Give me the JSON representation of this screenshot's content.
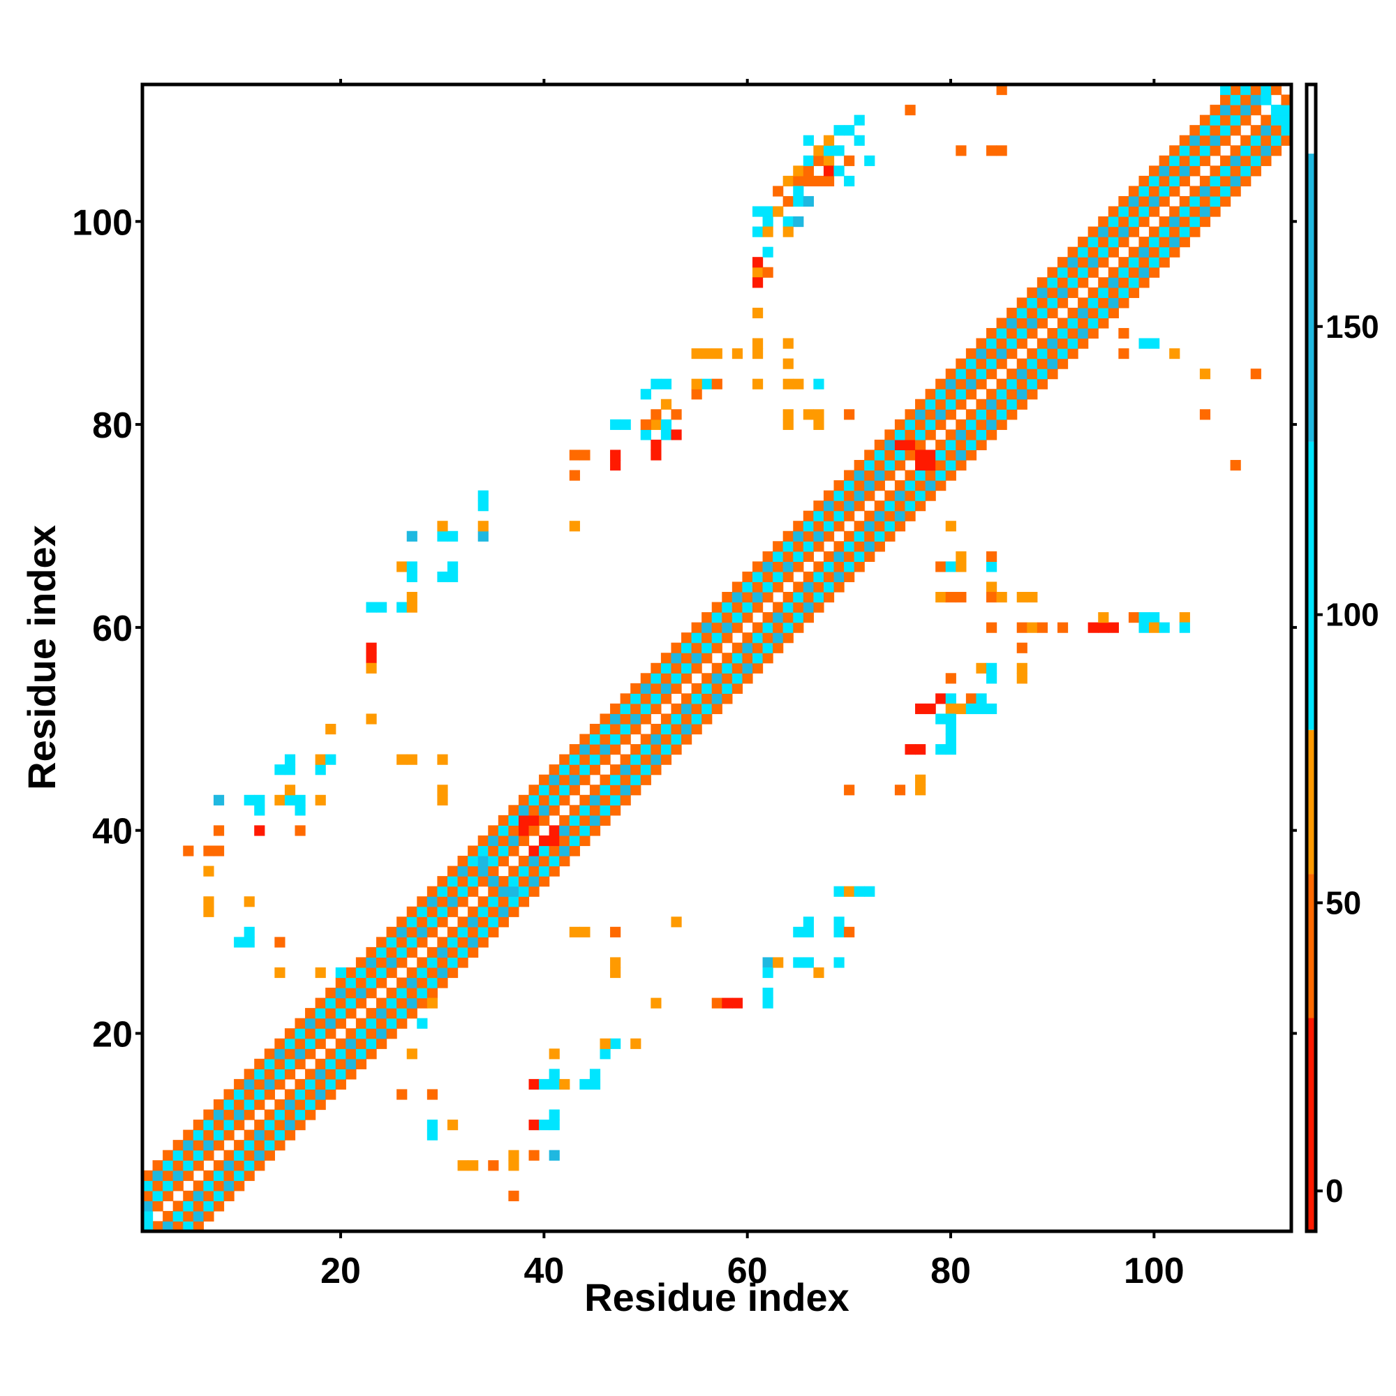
{
  "chart_data": {
    "type": "heatmap",
    "title": "",
    "xlabel": "Residue index",
    "ylabel": "Residue index",
    "xlim": [
      0.5,
      113.5
    ],
    "ylim": [
      0.5,
      113.5
    ],
    "x_ticks": [
      20,
      40,
      60,
      80,
      100
    ],
    "y_ticks": [
      20,
      40,
      60,
      80,
      100
    ],
    "x_tick_labels": [
      "20",
      "40",
      "60",
      "80",
      "100"
    ],
    "y_tick_labels": [
      "20",
      "40",
      "60",
      "80",
      "100"
    ],
    "grid": false,
    "colorbar": {
      "ticks": [
        0,
        50,
        100,
        150
      ],
      "tick_labels": [
        "0",
        "50",
        "100",
        "150"
      ],
      "range": [
        -7,
        192
      ],
      "bands": [
        {
          "from": -7,
          "to": 30,
          "color": "#ff1a00"
        },
        {
          "from": 30,
          "to": 55,
          "color": "#ff6a00"
        },
        {
          "from": 55,
          "to": 80,
          "color": "#ff9a00"
        },
        {
          "from": 80,
          "to": 130,
          "color": "#00e5ff"
        },
        {
          "from": 130,
          "to": 180,
          "color": "#1fb8e0"
        },
        {
          "from": 180,
          "to": 192,
          "color": "#ffffff"
        }
      ]
    },
    "colors": {
      "red": "#ff1a00",
      "orange": "#ff6a00",
      "amber": "#ff9a00",
      "cyan": "#00e5ff",
      "blue": "#1fb8e0",
      "steel": "#4a90c8"
    },
    "diagonal_pattern": [
      {
        "offset": 1,
        "value": 40
      },
      {
        "offset": 2,
        "value": 105
      },
      {
        "offset": 3,
        "value": 40
      },
      {
        "offset": 4,
        "value": 105
      },
      {
        "offset": 5,
        "value": 40
      }
    ],
    "cells": [
      [
        1,
        1,
        105
      ],
      [
        1,
        2,
        105
      ],
      [
        2,
        3,
        40
      ],
      [
        3,
        4,
        40
      ],
      [
        2,
        1,
        40
      ],
      [
        3,
        2,
        40
      ],
      [
        38,
        41,
        5
      ],
      [
        39,
        41,
        5
      ],
      [
        38,
        40,
        5
      ],
      [
        40,
        39,
        5
      ],
      [
        41,
        39,
        5
      ],
      [
        41,
        40,
        5
      ],
      [
        39,
        38,
        5
      ],
      [
        75,
        78,
        5
      ],
      [
        76,
        78,
        5
      ],
      [
        77,
        77,
        5
      ],
      [
        78,
        77,
        5
      ],
      [
        78,
        76,
        5
      ],
      [
        77,
        76,
        5
      ],
      [
        72,
        74,
        150
      ],
      [
        71,
        73,
        150
      ],
      [
        73,
        71,
        150
      ],
      [
        34,
        37,
        150
      ],
      [
        35,
        35,
        150
      ],
      [
        37,
        34,
        150
      ],
      [
        107,
        113,
        105
      ],
      [
        108,
        112,
        105
      ],
      [
        109,
        111,
        150
      ],
      [
        110,
        112,
        150
      ],
      [
        111,
        112,
        105
      ],
      [
        112,
        111,
        105
      ],
      [
        113,
        110,
        105
      ],
      [
        5,
        38,
        40
      ],
      [
        7,
        38,
        40
      ],
      [
        8,
        38,
        40
      ],
      [
        7,
        36,
        60
      ],
      [
        7,
        33,
        60
      ],
      [
        7,
        32,
        60
      ],
      [
        8,
        40,
        40
      ],
      [
        12,
        40,
        5
      ],
      [
        8,
        43,
        150
      ],
      [
        11,
        43,
        105
      ],
      [
        12,
        43,
        105
      ],
      [
        12,
        42,
        105
      ],
      [
        16,
        40,
        40
      ],
      [
        14,
        43,
        60
      ],
      [
        15,
        43,
        105
      ],
      [
        16,
        43,
        105
      ],
      [
        18,
        43,
        60
      ],
      [
        15,
        44,
        60
      ],
      [
        14,
        46,
        105
      ],
      [
        15,
        46,
        105
      ],
      [
        15,
        47,
        105
      ],
      [
        18,
        46,
        105
      ],
      [
        18,
        47,
        60
      ],
      [
        19,
        47,
        105
      ],
      [
        16,
        42,
        105
      ],
      [
        19,
        50,
        60
      ],
      [
        23,
        51,
        60
      ],
      [
        26,
        47,
        60
      ],
      [
        27,
        47,
        60
      ],
      [
        30,
        47,
        60
      ],
      [
        30,
        44,
        60
      ],
      [
        30,
        43,
        60
      ],
      [
        23,
        58,
        5
      ],
      [
        23,
        57,
        5
      ],
      [
        23,
        56,
        60
      ],
      [
        23,
        62,
        105
      ],
      [
        24,
        62,
        105
      ],
      [
        26,
        62,
        105
      ],
      [
        27,
        62,
        60
      ],
      [
        27,
        63,
        60
      ],
      [
        26,
        66,
        60
      ],
      [
        27,
        66,
        105
      ],
      [
        27,
        65,
        105
      ],
      [
        27,
        69,
        150
      ],
      [
        30,
        69,
        105
      ],
      [
        31,
        69,
        105
      ],
      [
        30,
        70,
        60
      ],
      [
        30,
        65,
        105
      ],
      [
        31,
        66,
        105
      ],
      [
        31,
        65,
        105
      ],
      [
        34,
        69,
        150
      ],
      [
        34,
        70,
        60
      ],
      [
        34,
        72,
        105
      ],
      [
        34,
        73,
        105
      ],
      [
        11,
        33,
        60
      ],
      [
        11,
        30,
        105
      ],
      [
        10,
        29,
        105
      ],
      [
        11,
        29,
        105
      ],
      [
        14,
        29,
        40
      ],
      [
        14,
        26,
        60
      ],
      [
        18,
        26,
        60
      ],
      [
        20,
        26,
        105
      ],
      [
        29,
        23,
        60
      ],
      [
        28,
        21,
        105
      ],
      [
        27,
        18,
        60
      ],
      [
        26,
        14,
        40
      ],
      [
        29,
        14,
        40
      ],
      [
        29,
        11,
        105
      ],
      [
        29,
        10,
        105
      ],
      [
        31,
        11,
        60
      ],
      [
        33,
        7,
        60
      ],
      [
        32,
        7,
        60
      ],
      [
        35,
        7,
        40
      ],
      [
        37,
        8,
        60
      ],
      [
        37,
        7,
        60
      ],
      [
        37,
        4,
        40
      ],
      [
        39,
        15,
        5
      ],
      [
        39,
        11,
        5
      ],
      [
        40,
        15,
        105
      ],
      [
        41,
        15,
        105
      ],
      [
        41,
        16,
        105
      ],
      [
        41,
        12,
        105
      ],
      [
        41,
        11,
        105
      ],
      [
        40,
        11,
        105
      ],
      [
        42,
        15,
        60
      ],
      [
        41,
        18,
        60
      ],
      [
        41,
        8,
        150
      ],
      [
        39,
        8,
        40
      ],
      [
        44,
        15,
        105
      ],
      [
        45,
        15,
        105
      ],
      [
        45,
        16,
        105
      ],
      [
        46,
        18,
        105
      ],
      [
        47,
        19,
        105
      ],
      [
        46,
        19,
        60
      ],
      [
        49,
        19,
        60
      ],
      [
        43,
        30,
        60
      ],
      [
        44,
        30,
        60
      ],
      [
        47,
        30,
        40
      ],
      [
        47,
        27,
        60
      ],
      [
        47,
        26,
        60
      ],
      [
        51,
        23,
        60
      ],
      [
        53,
        31,
        60
      ],
      [
        57,
        23,
        40
      ],
      [
        58,
        23,
        5
      ],
      [
        59,
        23,
        5
      ],
      [
        62,
        27,
        150
      ],
      [
        62,
        26,
        105
      ],
      [
        63,
        27,
        60
      ],
      [
        65,
        27,
        105
      ],
      [
        66,
        27,
        105
      ],
      [
        67,
        26,
        60
      ],
      [
        65,
        30,
        105
      ],
      [
        66,
        31,
        105
      ],
      [
        66,
        30,
        105
      ],
      [
        62,
        24,
        105
      ],
      [
        62,
        23,
        105
      ],
      [
        69,
        34,
        105
      ],
      [
        70,
        34,
        60
      ],
      [
        71,
        34,
        105
      ],
      [
        72,
        34,
        105
      ],
      [
        69,
        30,
        105
      ],
      [
        69,
        31,
        105
      ],
      [
        70,
        30,
        40
      ],
      [
        69,
        27,
        105
      ],
      [
        43,
        77,
        40
      ],
      [
        44,
        77,
        40
      ],
      [
        43,
        75,
        40
      ],
      [
        43,
        70,
        60
      ],
      [
        47,
        77,
        5
      ],
      [
        47,
        76,
        5
      ],
      [
        47,
        80,
        105
      ],
      [
        48,
        80,
        105
      ],
      [
        50,
        79,
        105
      ],
      [
        51,
        80,
        60
      ],
      [
        50,
        80,
        40
      ],
      [
        51,
        81,
        40
      ],
      [
        52,
        80,
        105
      ],
      [
        52,
        79,
        105
      ],
      [
        50,
        83,
        105
      ],
      [
        51,
        84,
        105
      ],
      [
        52,
        84,
        105
      ],
      [
        52,
        82,
        60
      ],
      [
        51,
        78,
        5
      ],
      [
        51,
        77,
        5
      ],
      [
        53,
        79,
        5
      ],
      [
        53,
        81,
        40
      ],
      [
        55,
        83,
        40
      ],
      [
        56,
        84,
        105
      ],
      [
        57,
        84,
        40
      ],
      [
        55,
        84,
        60
      ],
      [
        55,
        87,
        60
      ],
      [
        56,
        87,
        60
      ],
      [
        57,
        87,
        60
      ],
      [
        59,
        87,
        60
      ],
      [
        61,
        87,
        60
      ],
      [
        61,
        88,
        60
      ],
      [
        61,
        84,
        60
      ],
      [
        64,
        88,
        60
      ],
      [
        64,
        86,
        60
      ],
      [
        64,
        84,
        60
      ],
      [
        65,
        84,
        60
      ],
      [
        64,
        81,
        60
      ],
      [
        64,
        80,
        60
      ],
      [
        67,
        84,
        105
      ],
      [
        66,
        81,
        60
      ],
      [
        67,
        81,
        60
      ],
      [
        67,
        80,
        60
      ],
      [
        70,
        81,
        40
      ],
      [
        61,
        91,
        60
      ],
      [
        61,
        95,
        60
      ],
      [
        61,
        94,
        5
      ],
      [
        61,
        96,
        5
      ],
      [
        62,
        95,
        40
      ],
      [
        62,
        97,
        105
      ],
      [
        61,
        101,
        105
      ],
      [
        62,
        101,
        105
      ],
      [
        62,
        100,
        105
      ],
      [
        61,
        99,
        105
      ],
      [
        62,
        99,
        60
      ],
      [
        64,
        100,
        105
      ],
      [
        64,
        99,
        60
      ],
      [
        65,
        100,
        150
      ],
      [
        64,
        102,
        40
      ],
      [
        63,
        101,
        60
      ],
      [
        63,
        103,
        40
      ],
      [
        64,
        104,
        60
      ],
      [
        65,
        104,
        40
      ],
      [
        65,
        105,
        60
      ],
      [
        66,
        105,
        40
      ],
      [
        66,
        106,
        105
      ],
      [
        67,
        106,
        40
      ],
      [
        68,
        106,
        60
      ],
      [
        67,
        107,
        60
      ],
      [
        68,
        107,
        105
      ],
      [
        67,
        104,
        40
      ],
      [
        68,
        104,
        40
      ],
      [
        66,
        104,
        40
      ],
      [
        66,
        108,
        105
      ],
      [
        68,
        108,
        60
      ],
      [
        69,
        109,
        105
      ],
      [
        70,
        109,
        105
      ],
      [
        71,
        110,
        105
      ],
      [
        69,
        107,
        105
      ],
      [
        71,
        108,
        105
      ],
      [
        68,
        105,
        5
      ],
      [
        69,
        105,
        105
      ],
      [
        70,
        104,
        105
      ],
      [
        70,
        106,
        40
      ],
      [
        72,
        106,
        105
      ],
      [
        65,
        102,
        105
      ],
      [
        65,
        103,
        105
      ],
      [
        66,
        102,
        150
      ],
      [
        76,
        111,
        40
      ],
      [
        85,
        113,
        40
      ],
      [
        81,
        107,
        40
      ],
      [
        85,
        107,
        40
      ],
      [
        84,
        107,
        40
      ],
      [
        80,
        70,
        60
      ],
      [
        79,
        66,
        40
      ],
      [
        80,
        66,
        105
      ],
      [
        81,
        66,
        60
      ],
      [
        81,
        67,
        60
      ],
      [
        84,
        66,
        105
      ],
      [
        84,
        67,
        40
      ],
      [
        79,
        63,
        60
      ],
      [
        80,
        63,
        40
      ],
      [
        81,
        63,
        40
      ],
      [
        84,
        64,
        60
      ],
      [
        84,
        63,
        40
      ],
      [
        85,
        63,
        60
      ],
      [
        87,
        63,
        60
      ],
      [
        88,
        63,
        60
      ],
      [
        84,
        60,
        40
      ],
      [
        87,
        60,
        40
      ],
      [
        88,
        60,
        60
      ],
      [
        89,
        60,
        40
      ],
      [
        91,
        60,
        40
      ],
      [
        94,
        60,
        5
      ],
      [
        95,
        60,
        5
      ],
      [
        96,
        60,
        5
      ],
      [
        95,
        61,
        60
      ],
      [
        98,
        61,
        40
      ],
      [
        99,
        61,
        105
      ],
      [
        100,
        61,
        105
      ],
      [
        99,
        60,
        105
      ],
      [
        100,
        60,
        60
      ],
      [
        101,
        60,
        105
      ],
      [
        103,
        61,
        60
      ],
      [
        103,
        60,
        105
      ],
      [
        87,
        58,
        40
      ],
      [
        87,
        56,
        60
      ],
      [
        87,
        55,
        60
      ],
      [
        83,
        56,
        60
      ],
      [
        84,
        56,
        105
      ],
      [
        84,
        55,
        105
      ],
      [
        80,
        55,
        40
      ],
      [
        78,
        52,
        5
      ],
      [
        79,
        53,
        5
      ],
      [
        77,
        52,
        5
      ],
      [
        80,
        53,
        105
      ],
      [
        80,
        52,
        60
      ],
      [
        79,
        51,
        105
      ],
      [
        80,
        51,
        105
      ],
      [
        81,
        52,
        60
      ],
      [
        82,
        53,
        40
      ],
      [
        82,
        52,
        105
      ],
      [
        83,
        52,
        105
      ],
      [
        84,
        52,
        105
      ],
      [
        83,
        53,
        105
      ],
      [
        80,
        50,
        105
      ],
      [
        80,
        49,
        105
      ],
      [
        79,
        48,
        105
      ],
      [
        80,
        48,
        105
      ],
      [
        76,
        48,
        5
      ],
      [
        77,
        48,
        5
      ],
      [
        77,
        44,
        60
      ],
      [
        77,
        45,
        60
      ],
      [
        75,
        44,
        40
      ],
      [
        70,
        44,
        40
      ],
      [
        97,
        87,
        40
      ],
      [
        102,
        87,
        60
      ],
      [
        105,
        85,
        60
      ],
      [
        110,
        85,
        40
      ],
      [
        105,
        81,
        40
      ],
      [
        108,
        76,
        40
      ],
      [
        92,
        88,
        105
      ],
      [
        88,
        92,
        105
      ],
      [
        99,
        88,
        105
      ],
      [
        100,
        88,
        105
      ],
      [
        97,
        89,
        40
      ]
    ]
  }
}
